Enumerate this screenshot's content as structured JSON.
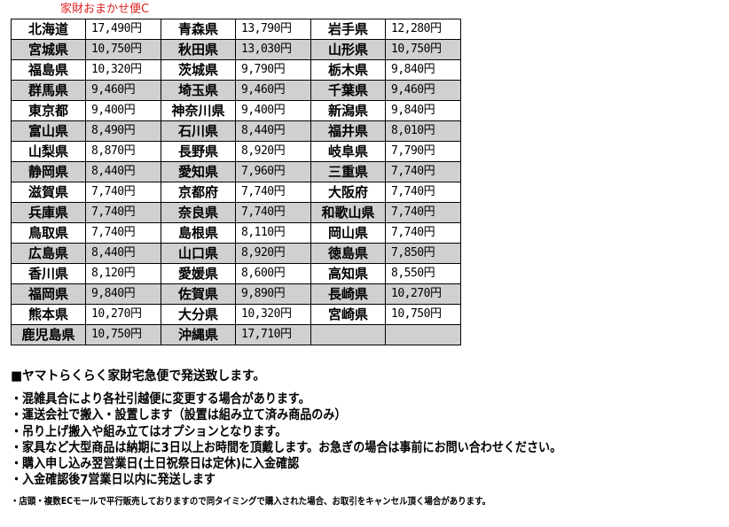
{
  "title": "家財おまかせ便C",
  "rows": [
    [
      [
        "北海道",
        "17,490円"
      ],
      [
        "青森県",
        "13,790円"
      ],
      [
        "岩手県",
        "12,280円"
      ]
    ],
    [
      [
        "宮城県",
        "10,750円"
      ],
      [
        "秋田県",
        "13,030円"
      ],
      [
        "山形県",
        "10,750円"
      ]
    ],
    [
      [
        "福島県",
        "10,320円"
      ],
      [
        "茨城県",
        "9,790円"
      ],
      [
        "栃木県",
        "9,840円"
      ]
    ],
    [
      [
        "群馬県",
        "9,460円"
      ],
      [
        "埼玉県",
        "9,460円"
      ],
      [
        "千葉県",
        "9,460円"
      ]
    ],
    [
      [
        "東京都",
        "9,400円"
      ],
      [
        "神奈川県",
        "9,400円"
      ],
      [
        "新潟県",
        "9,840円"
      ]
    ],
    [
      [
        "富山県",
        "8,490円"
      ],
      [
        "石川県",
        "8,440円"
      ],
      [
        "福井県",
        "8,010円"
      ]
    ],
    [
      [
        "山梨県",
        "8,870円"
      ],
      [
        "長野県",
        "8,920円"
      ],
      [
        "岐阜県",
        "7,790円"
      ]
    ],
    [
      [
        "静岡県",
        "8,440円"
      ],
      [
        "愛知県",
        "7,960円"
      ],
      [
        "三重県",
        "7,740円"
      ]
    ],
    [
      [
        "滋賀県",
        "7,740円"
      ],
      [
        "京都府",
        "7,740円"
      ],
      [
        "大阪府",
        "7,740円"
      ]
    ],
    [
      [
        "兵庫県",
        "7,740円"
      ],
      [
        "奈良県",
        "7,740円"
      ],
      [
        "和歌山県",
        "7,740円"
      ]
    ],
    [
      [
        "鳥取県",
        "7,740円"
      ],
      [
        "島根県",
        "8,110円"
      ],
      [
        "岡山県",
        "7,740円"
      ]
    ],
    [
      [
        "広島県",
        "8,440円"
      ],
      [
        "山口県",
        "8,920円"
      ],
      [
        "徳島県",
        "7,850円"
      ]
    ],
    [
      [
        "香川県",
        "8,120円"
      ],
      [
        "愛媛県",
        "8,600円"
      ],
      [
        "高知県",
        "8,550円"
      ]
    ],
    [
      [
        "福岡県",
        "9,840円"
      ],
      [
        "佐賀県",
        "9,890円"
      ],
      [
        "長崎県",
        "10,270円"
      ]
    ],
    [
      [
        "熊本県",
        "10,270円"
      ],
      [
        "大分県",
        "10,320円"
      ],
      [
        "宮崎県",
        "10,750円"
      ]
    ],
    [
      [
        "鹿児島県",
        "10,750円"
      ],
      [
        "沖縄県",
        "17,710円"
      ],
      [
        "",
        ""
      ]
    ]
  ],
  "notes": {
    "heading": "■ヤマトらくらく家財宅急便で発送致します。",
    "lines": [
      "・混雑具合により各社引越便に変更する場合があります。",
      "・運送会社で搬入・設置します（設置は組み立て済み商品のみ）",
      "・吊り上げ搬入や組み立てはオプションとなります。",
      "・家具など大型商品は納期に3日以上お時間を頂戴します。お急ぎの場合は事前にお問い合わせください。",
      "・購入申し込み翌営業日(土日祝祭日は定休)に入金確認",
      "・入金確認後7営業日以内に発送します"
    ],
    "footnote": "・店頭・複数ECモールで平行販売しておりますので同タイミングで購入された場合、お取引をキャンセル頂く場合があります。"
  },
  "colors": {
    "title": "#e02020",
    "alt_row": "#d0d0d0"
  }
}
